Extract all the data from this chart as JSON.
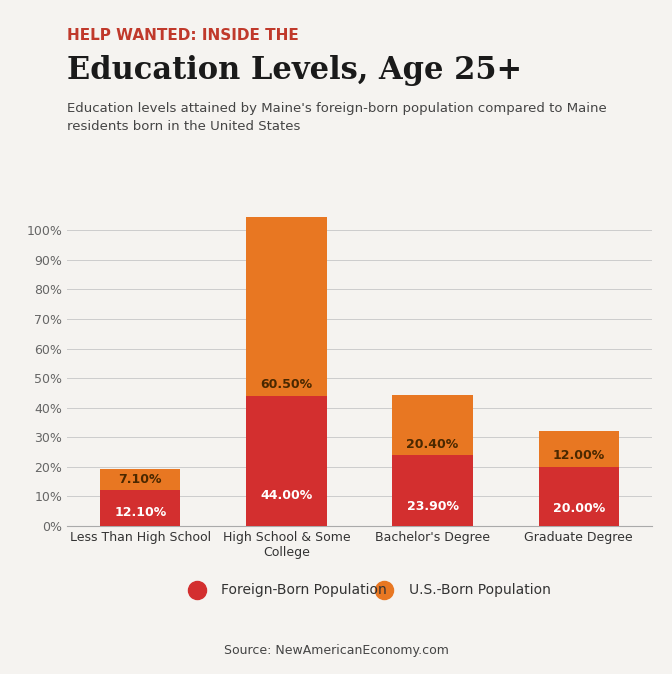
{
  "title_top": "HELP WANTED: INSIDE THE",
  "title_main": "Education Levels, Age 25+",
  "subtitle": "Education levels attained by Maine's foreign-born population compared to Maine\nresidents born in the United States",
  "source_prefix": "Source: ",
  "source_link": "NewAmericanEconomy.com",
  "categories": [
    "Less Than High School",
    "High School & Some\nCollege",
    "Bachelor's Degree",
    "Graduate Degree"
  ],
  "foreign_born": [
    12.1,
    44.0,
    23.9,
    20.0
  ],
  "us_born": [
    7.1,
    60.5,
    20.4,
    12.0
  ],
  "foreign_color": "#D32F2F",
  "us_color": "#E87722",
  "background_color": "#F5F3F0",
  "title_top_color": "#C0392B",
  "yticks": [
    0,
    10,
    20,
    30,
    40,
    50,
    60,
    70,
    80,
    90,
    100
  ],
  "legend_foreign": "Foreign-Born Population",
  "legend_us": "U.S.-Born Population"
}
